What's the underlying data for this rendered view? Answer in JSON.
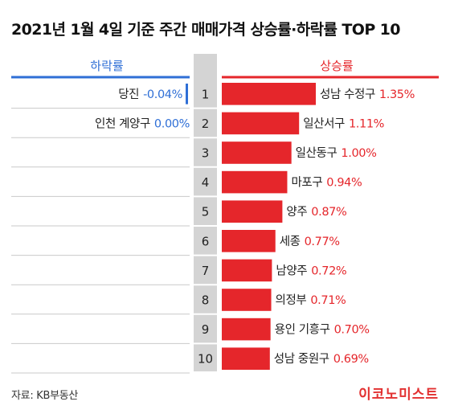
{
  "title": "2021년 1월 4일 기준 주간 매매가격 상승률·하락률 TOP 10",
  "source": "자료: KB부동산",
  "logo": "이코노미스트",
  "colors": {
    "rise": "#e5262b",
    "fall": "#2f6fd6",
    "rank_bg": "#d4d4d4",
    "text": "#222222"
  },
  "chart_data": {
    "type": "bar",
    "rise": {
      "header": "상승률",
      "ranks": [
        "1",
        "2",
        "3",
        "4",
        "5",
        "6",
        "7",
        "8",
        "9",
        "10"
      ],
      "labels": [
        "성남 수정구",
        "일산서구",
        "일산동구",
        "마포구",
        "양주",
        "세종",
        "남양주",
        "의정부",
        "용인 기흥구",
        "성남 중원구"
      ],
      "values": [
        1.35,
        1.11,
        1.0,
        0.94,
        0.87,
        0.77,
        0.72,
        0.71,
        0.7,
        0.69
      ],
      "value_labels": [
        "1.35%",
        "1.11%",
        "1.00%",
        "0.94%",
        "0.87%",
        "0.77%",
        "0.72%",
        "0.71%",
        "0.70%",
        "0.69%"
      ]
    },
    "fall": {
      "header": "하락률",
      "labels": [
        "당진",
        "인천 계양구"
      ],
      "values": [
        -0.04,
        0.0
      ],
      "value_labels": [
        "-0.04%",
        "0.00%"
      ]
    }
  }
}
